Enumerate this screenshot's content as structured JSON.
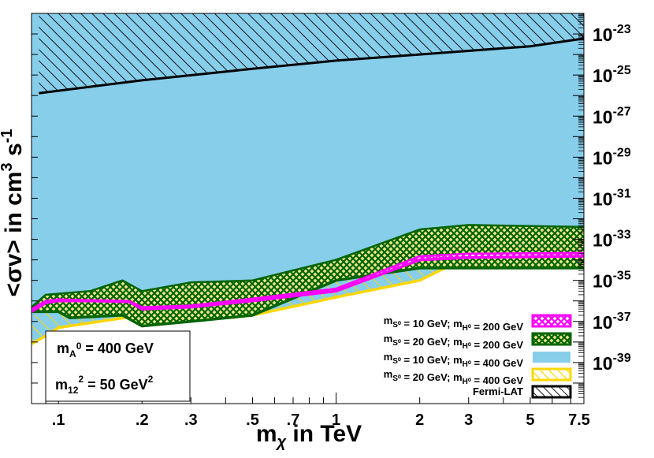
{
  "chart_data": {
    "type": "area",
    "x_scale": "log",
    "y_scale": "log",
    "xlim": [
      0.08,
      7.8
    ],
    "ylim": [
      1e-41,
      1e-22
    ],
    "x_ticks": [
      {
        "v": 0.1,
        "t": ".1"
      },
      {
        "v": 0.2,
        "t": ".2"
      },
      {
        "v": 0.3,
        "t": ".3"
      },
      {
        "v": 0.5,
        "t": ".5"
      },
      {
        "v": 0.7,
        "t": ".7"
      },
      {
        "v": 1,
        "t": "1"
      },
      {
        "v": 2,
        "t": "2"
      },
      {
        "v": 3,
        "t": "3"
      },
      {
        "v": 5,
        "t": "5"
      },
      {
        "v": 7.5,
        "t": "7.5"
      }
    ],
    "y_ticks": [
      {
        "v": 1e-23,
        "m": "10",
        "e": "-23"
      },
      {
        "v": 1e-25,
        "m": "10",
        "e": "-25"
      },
      {
        "v": 1e-27,
        "m": "10",
        "e": "-27"
      },
      {
        "v": 1e-29,
        "m": "10",
        "e": "-29"
      },
      {
        "v": 1e-31,
        "m": "10",
        "e": "-31"
      },
      {
        "v": 1e-33,
        "m": "10",
        "e": "-33"
      },
      {
        "v": 1e-35,
        "m": "10",
        "e": "-35"
      },
      {
        "v": 1e-37,
        "m": "10",
        "e": "-37"
      },
      {
        "v": 1e-39,
        "m": "10",
        "e": "-39"
      }
    ],
    "xlabel": "m_χ in TeV",
    "ylabel": "<σv> in cm³ s⁻¹",
    "annotation": {
      "line1": "m_A⁰ = 400 GeV",
      "line2": "m_12² = 50 GeV²"
    },
    "legend_position": "bottom-right",
    "series": [
      {
        "name": "m_S⁰ = 10 GeV; m_H⁰ = 200 GeV",
        "color": "#ff00ff",
        "fill": "crosshatch",
        "lower": [
          [
            0.08,
            3e-37
          ],
          [
            0.09,
            8e-37
          ],
          [
            0.1,
            1e-36
          ],
          [
            0.13,
            1e-36
          ],
          [
            0.18,
            9e-37
          ],
          [
            0.2,
            4e-37
          ],
          [
            0.3,
            5e-37
          ],
          [
            0.5,
            1e-36
          ],
          [
            1,
            3e-36
          ],
          [
            2,
            1e-34
          ],
          [
            3,
            1.3e-34
          ],
          [
            7.8,
            1.5e-34
          ]
        ],
        "upper": [
          [
            0.08,
            4e-37
          ],
          [
            0.09,
            1e-36
          ],
          [
            0.1,
            1.2e-36
          ],
          [
            0.13,
            1.1e-36
          ],
          [
            0.18,
            1e-36
          ],
          [
            0.2,
            5e-37
          ],
          [
            0.3,
            6e-37
          ],
          [
            0.5,
            1.3e-36
          ],
          [
            1,
            4e-36
          ],
          [
            2,
            1.5e-34
          ],
          [
            3,
            2e-34
          ],
          [
            7.8,
            2.2e-34
          ]
        ]
      },
      {
        "name": "m_S⁰ = 20 GeV; m_H⁰ = 200 GeV",
        "color": "#006400",
        "fill": "crosshatch",
        "lower": [
          [
            0.08,
            3e-37
          ],
          [
            0.09,
            3e-37
          ],
          [
            0.1,
            3e-37
          ],
          [
            0.11,
            1.5e-37
          ],
          [
            0.17,
            2e-37
          ],
          [
            0.2,
            6e-38
          ],
          [
            0.3,
            1e-37
          ],
          [
            0.5,
            2e-37
          ],
          [
            1,
            1e-35
          ],
          [
            2,
            4e-35
          ],
          [
            3,
            4e-35
          ],
          [
            7.8,
            4e-35
          ]
        ],
        "upper": [
          [
            0.08,
            5e-37
          ],
          [
            0.09,
            2e-36
          ],
          [
            0.13,
            3e-36
          ],
          [
            0.17,
            1e-35
          ],
          [
            0.2,
            3e-36
          ],
          [
            0.3,
            8e-36
          ],
          [
            0.5,
            1e-35
          ],
          [
            1,
            1e-34
          ],
          [
            2,
            3e-33
          ],
          [
            3,
            5e-33
          ],
          [
            7.8,
            4e-33
          ]
        ]
      },
      {
        "name": "m_S⁰ = 10 GeV; m_H⁰ = 400 GeV",
        "color": "#87ceeb",
        "fill": "solid",
        "lower": [
          [
            0.08,
            2e-37
          ],
          [
            0.1,
            1e-36
          ],
          [
            0.2,
            3e-36
          ],
          [
            0.4,
            8e-36
          ],
          [
            0.7,
            1.5e-35
          ],
          [
            1,
            3e-35
          ],
          [
            2,
            1e-34
          ],
          [
            3,
            1.5e-34
          ],
          [
            7.8,
            2e-34
          ]
        ],
        "upper": [
          [
            0.08,
            1e-22
          ],
          [
            7.8,
            1e-22
          ]
        ]
      },
      {
        "name": "m_S⁰ = 20 GeV; m_H⁰ = 400 GeV",
        "color": "#ffd700",
        "fill": "hatch",
        "lower": [
          [
            0.08,
            8e-39
          ],
          [
            0.09,
            2e-38
          ],
          [
            0.1,
            5e-38
          ],
          [
            0.2,
            2e-37
          ],
          [
            0.4,
            5e-37
          ],
          [
            0.41,
            1.5e-37
          ],
          [
            0.5,
            2e-37
          ],
          [
            1,
            1.5e-36
          ],
          [
            2,
            1e-35
          ],
          [
            3,
            1.5e-34
          ],
          [
            7.8,
            3e-34
          ]
        ],
        "upper": [
          [
            0.08,
            1e-22
          ],
          [
            7.8,
            1e-22
          ]
        ]
      },
      {
        "name": "Fermi-LAT",
        "color": "#000000",
        "fill": "hatch-black",
        "lower": [
          [
            0.085,
            1.3e-26
          ],
          [
            0.2,
            5.5e-26
          ],
          [
            0.5,
            2e-25
          ],
          [
            1,
            5e-25
          ],
          [
            2,
            1e-24
          ],
          [
            3,
            1.5e-24
          ],
          [
            5,
            2.5e-24
          ],
          [
            7.8,
            6e-24
          ]
        ],
        "upper": [
          [
            0.085,
            1e-22
          ],
          [
            7.8,
            1e-22
          ]
        ]
      }
    ]
  }
}
